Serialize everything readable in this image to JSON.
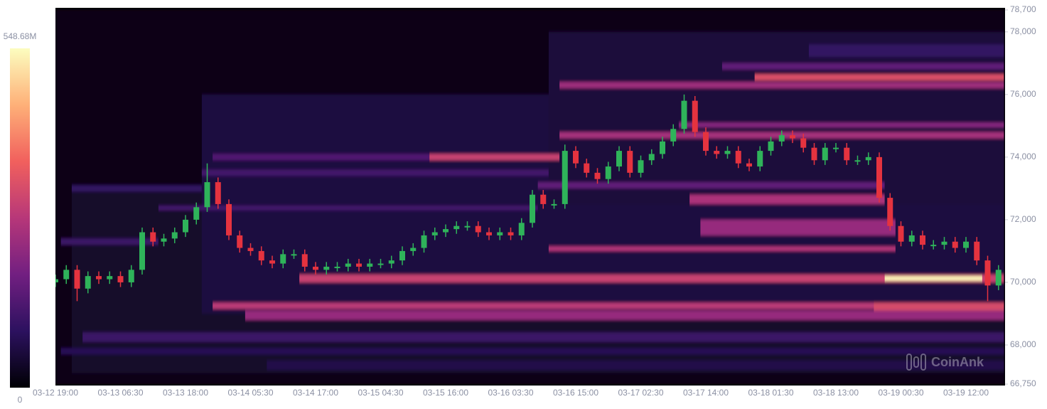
{
  "chart_data": {
    "type": "heatmap-candlestick",
    "watermark": "CoinAnk",
    "ylim": [
      66750,
      78700
    ],
    "yticks": [
      {
        "value": 66750,
        "label": "66,750"
      },
      {
        "value": 68000,
        "label": "68,000"
      },
      {
        "value": 70000,
        "label": "70,000"
      },
      {
        "value": 72000,
        "label": "72,000"
      },
      {
        "value": 74000,
        "label": "74,000"
      },
      {
        "value": 76000,
        "label": "76,000"
      },
      {
        "value": 78000,
        "label": "78,000"
      },
      {
        "value": 78700,
        "label": "78,700"
      }
    ],
    "zlim": [
      0,
      548.68
    ],
    "zticks": [
      {
        "value": 548.68,
        "label": "548.68M"
      },
      0
    ],
    "colorscale": [
      "#000004",
      "#2c115f",
      "#721f81",
      "#b73779",
      "#f1605d",
      "#feb078",
      "#fcfdbf"
    ],
    "up_color": "#2fb35a",
    "down_color": "#e5333f",
    "categories": [
      "03-12 19:00",
      null,
      null,
      null,
      null,
      null,
      "03-13 06:30",
      null,
      null,
      null,
      null,
      null,
      "03-13 18:00",
      null,
      null,
      null,
      null,
      null,
      "03-14 05:30",
      null,
      null,
      null,
      null,
      null,
      "03-14 17:00",
      null,
      null,
      null,
      null,
      null,
      "03-15 04:30",
      null,
      null,
      null,
      null,
      null,
      "03-15 16:00",
      null,
      null,
      null,
      null,
      null,
      "03-16 03:30",
      null,
      null,
      null,
      null,
      null,
      "03-16 15:00",
      null,
      null,
      null,
      null,
      null,
      "03-17 02:30",
      null,
      null,
      null,
      null,
      null,
      "03-17 14:00",
      null,
      null,
      null,
      null,
      null,
      "03-18 01:30",
      null,
      null,
      null,
      null,
      null,
      "03-18 13:00",
      null,
      null,
      null,
      null,
      null,
      "03-19 00:30",
      null,
      null,
      null,
      null,
      null,
      "03-19 12:00",
      null,
      null,
      null
    ],
    "open": [
      70000,
      70100,
      70400,
      69800,
      70200,
      70100,
      70200,
      70000,
      70400,
      71600,
      71300,
      71400,
      71600,
      72000,
      72400,
      73200,
      72500,
      71500,
      71100,
      71000,
      70700,
      70600,
      70900,
      70900,
      70500,
      70400,
      70500,
      70500,
      70600,
      70500,
      70600,
      70600,
      70700,
      71000,
      71100,
      71500,
      71600,
      71700,
      71800,
      71800,
      71600,
      71500,
      71600,
      71500,
      71900,
      72800,
      72500,
      72500,
      74200,
      73800,
      73500,
      73300,
      73700,
      74200,
      73500,
      73900,
      74100,
      74500,
      74900,
      75800,
      74800,
      74200,
      74100,
      74200,
      73800,
      73700,
      74200,
      74500,
      74700,
      74600,
      74300,
      73900,
      74300,
      74300,
      73900,
      73900,
      74000,
      72700,
      71800,
      71300,
      71500,
      71200,
      71200,
      71300,
      71100,
      71300,
      70700,
      69900
    ],
    "high": [
      70250,
      70550,
      70550,
      70350,
      70350,
      70350,
      70350,
      70550,
      71750,
      71750,
      71550,
      71750,
      72150,
      72550,
      73800,
      73350,
      72650,
      71650,
      71250,
      71150,
      70850,
      71050,
      71050,
      71050,
      70650,
      70650,
      70650,
      70750,
      70750,
      70750,
      70750,
      70850,
      71150,
      71250,
      71650,
      71750,
      71850,
      71950,
      71950,
      71950,
      71750,
      71750,
      71750,
      72050,
      72950,
      72950,
      72650,
      74400,
      74350,
      73950,
      73650,
      73850,
      74350,
      74350,
      74050,
      74250,
      74650,
      75050,
      76000,
      75950,
      74950,
      74350,
      74350,
      74350,
      73950,
      74350,
      74650,
      74850,
      74850,
      74750,
      74450,
      74450,
      74450,
      74450,
      74050,
      74150,
      74150,
      72850,
      71950,
      71650,
      71650,
      71350,
      71450,
      71450,
      71450,
      71450,
      70850,
      70550
    ],
    "low": [
      69850,
      69950,
      69400,
      69650,
      69950,
      69950,
      69850,
      69850,
      70250,
      71150,
      71150,
      71250,
      71450,
      71850,
      72250,
      72350,
      71350,
      70950,
      70850,
      70550,
      70450,
      70450,
      70750,
      70350,
      70250,
      70250,
      70350,
      70350,
      70350,
      70350,
      70450,
      70450,
      70550,
      70850,
      70950,
      71350,
      71450,
      71550,
      71650,
      71450,
      71350,
      71350,
      71350,
      71350,
      71750,
      72350,
      72350,
      72350,
      73650,
      73350,
      73150,
      73150,
      73550,
      73350,
      73350,
      73750,
      73950,
      74350,
      74750,
      74650,
      74050,
      73950,
      73950,
      73650,
      73550,
      73550,
      74050,
      74350,
      74450,
      74150,
      73750,
      73750,
      74150,
      73750,
      73750,
      73750,
      72550,
      71650,
      71150,
      71150,
      71050,
      71050,
      71050,
      70950,
      70950,
      70550,
      69400,
      69750
    ],
    "close": [
      70100,
      70400,
      69800,
      70200,
      70100,
      70200,
      70000,
      70400,
      71600,
      71300,
      71400,
      71600,
      72000,
      72400,
      73200,
      72500,
      71500,
      71100,
      71000,
      70700,
      70600,
      70900,
      70900,
      70500,
      70400,
      70500,
      70500,
      70600,
      70500,
      70600,
      70600,
      70700,
      71000,
      71100,
      71500,
      71600,
      71700,
      71800,
      71800,
      71600,
      71500,
      71600,
      71500,
      71900,
      72800,
      72500,
      72500,
      74200,
      73800,
      73500,
      73300,
      73700,
      74200,
      73500,
      73900,
      74100,
      74500,
      74900,
      75800,
      74800,
      74200,
      74100,
      74200,
      73800,
      73700,
      74200,
      74500,
      74700,
      74600,
      74300,
      73900,
      74300,
      74300,
      73900,
      73900,
      74000,
      72700,
      71800,
      71300,
      71500,
      71200,
      71200,
      71300,
      71100,
      71300,
      70700,
      69900,
      70400
    ],
    "heatmap": {
      "bands": [
        {
          "low": 66750,
          "high": 78700,
          "start": 0,
          "end": 88,
          "value": 15
        },
        {
          "low": 67100,
          "high": 73000,
          "start": 2,
          "end": 88,
          "value": 40
        },
        {
          "low": 69000,
          "high": 76000,
          "start": 14,
          "end": 88,
          "value": 60
        },
        {
          "low": 72500,
          "high": 78000,
          "start": 46,
          "end": 88,
          "value": 55
        },
        {
          "low": 67200,
          "high": 67500,
          "start": 20,
          "end": 88,
          "value": 70
        },
        {
          "low": 67700,
          "high": 67900,
          "start": 1,
          "end": 88,
          "value": 80
        },
        {
          "low": 68100,
          "high": 68400,
          "start": 3,
          "end": 88,
          "value": 110
        },
        {
          "low": 68800,
          "high": 69100,
          "start": 18,
          "end": 88,
          "value": 230
        },
        {
          "low": 69150,
          "high": 69350,
          "start": 15,
          "end": 88,
          "value": 280
        },
        {
          "low": 69100,
          "high": 69350,
          "start": 76,
          "end": 88,
          "value": 320
        },
        {
          "low": 70000,
          "high": 70250,
          "start": 23,
          "end": 88,
          "value": 300
        },
        {
          "low": 70050,
          "high": 70200,
          "start": 77,
          "end": 86,
          "value": 540
        },
        {
          "low": 71000,
          "high": 71150,
          "start": 46,
          "end": 78,
          "value": 270
        },
        {
          "low": 71200,
          "high": 71400,
          "start": 1,
          "end": 10,
          "value": 110
        },
        {
          "low": 71500,
          "high": 72000,
          "start": 60,
          "end": 78,
          "value": 230
        },
        {
          "low": 72300,
          "high": 72450,
          "start": 10,
          "end": 45,
          "value": 120
        },
        {
          "low": 72500,
          "high": 72800,
          "start": 59,
          "end": 77,
          "value": 260
        },
        {
          "low": 72900,
          "high": 73100,
          "start": 2,
          "end": 14,
          "value": 100
        },
        {
          "low": 73000,
          "high": 73200,
          "start": 45,
          "end": 77,
          "value": 160
        },
        {
          "low": 73400,
          "high": 73600,
          "start": 14,
          "end": 46,
          "value": 120
        },
        {
          "low": 73900,
          "high": 74100,
          "start": 15,
          "end": 35,
          "value": 140
        },
        {
          "low": 73900,
          "high": 74100,
          "start": 35,
          "end": 47,
          "value": 300
        },
        {
          "low": 74600,
          "high": 74800,
          "start": 47,
          "end": 88,
          "value": 250
        },
        {
          "low": 74950,
          "high": 75100,
          "start": 58,
          "end": 88,
          "value": 210
        },
        {
          "low": 76200,
          "high": 76400,
          "start": 47,
          "end": 88,
          "value": 240
        },
        {
          "low": 76450,
          "high": 76650,
          "start": 65,
          "end": 88,
          "value": 330
        },
        {
          "low": 76800,
          "high": 77000,
          "start": 62,
          "end": 88,
          "value": 160
        },
        {
          "low": 77200,
          "high": 77600,
          "start": 70,
          "end": 88,
          "value": 100
        }
      ]
    }
  }
}
